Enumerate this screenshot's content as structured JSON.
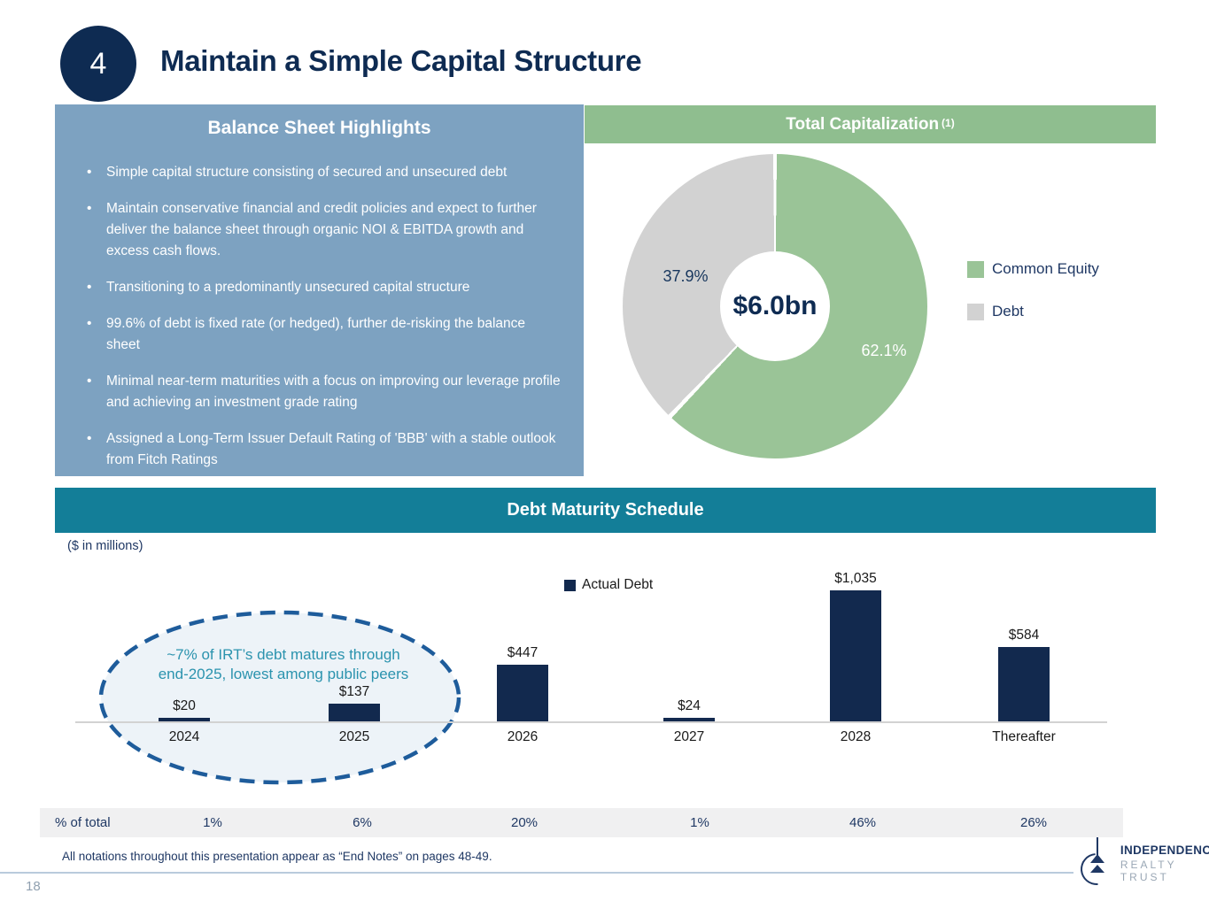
{
  "page": {
    "number": "18",
    "slide_number": "4",
    "title": "Maintain a Simple Capital Structure",
    "footnote": "All notations throughout this presentation appear as “End Notes” on pages 48-49."
  },
  "balance_sheet": {
    "title": "Balance Sheet Highlights",
    "bullet_glyph": "•",
    "bullets": [
      "Simple capital structure consisting of secured and unsecured debt",
      "Maintain conservative financial and credit policies and expect to further deliver the balance sheet through organic NOI & EBITDA growth and excess cash flows.",
      "Transitioning to a predominantly unsecured capital structure",
      "99.6% of debt is fixed rate (or hedged), further de-risking the balance sheet",
      "Minimal near-term maturities with a focus on improving our leverage profile and achieving an investment grade rating",
      "Assigned a Long-Term Issuer Default Rating of 'BBB' with a stable outlook from Fitch Ratings"
    ]
  },
  "capitalization": {
    "title": "Total Capitalization",
    "title_superscript": "(1)",
    "center_label": "$6.0bn",
    "legend": [
      {
        "label": "Common Equity",
        "color": "#9AC497"
      },
      {
        "label": "Debt",
        "color": "#D2D2D2"
      }
    ]
  },
  "debt_maturity": {
    "title": "Debt Maturity Schedule",
    "units_label": "($ in millions)",
    "series_label": "Actual Debt",
    "annotation_line1": "~7% of IRT’s debt matures through",
    "annotation_line2": "end-2025, lowest among public peers",
    "percent_row_label": "% of total"
  },
  "logo": {
    "line1": "INDEPENDENCE",
    "line2": "REALTY TRUST"
  },
  "colors": {
    "navy": "#0E2B52",
    "panel_blue": "#7DA2C1",
    "header_green": "#8FBE8F",
    "banner_teal": "#137E98",
    "bar_navy": "#12294E",
    "donut_green": "#9AC497",
    "donut_gray": "#D2D2D2",
    "annotation_teal": "#2B93AE"
  },
  "chart_data": [
    {
      "type": "pie",
      "title": "Total Capitalization (1)",
      "labels": [
        "Common Equity",
        "Debt"
      ],
      "values": [
        62.1,
        37.9
      ],
      "pct_labels": [
        "62.1%",
        "37.9%"
      ],
      "colors": [
        "#9AC497",
        "#D2D2D2"
      ],
      "center_label": "$6.0bn",
      "donut": true,
      "start_angle_deg": 0,
      "legend_position": "right"
    },
    {
      "type": "bar",
      "title": "Debt Maturity Schedule",
      "ylabel": "$ in millions",
      "series_name": "Actual Debt",
      "categories": [
        "2024",
        "2025",
        "2026",
        "2027",
        "2028",
        "Thereafter"
      ],
      "values": [
        20,
        137,
        447,
        24,
        1035,
        584
      ],
      "value_labels": [
        "$20",
        "$137",
        "$447",
        "$24",
        "$1,035",
        "$584"
      ],
      "percent_of_total": [
        "1%",
        "6%",
        "20%",
        "1%",
        "46%",
        "26%"
      ],
      "bar_color": "#12294E",
      "grid": false,
      "annotation": "~7% of IRT’s debt matures through end-2025, lowest among public peers",
      "ylim": [
        0,
        1100
      ]
    }
  ]
}
